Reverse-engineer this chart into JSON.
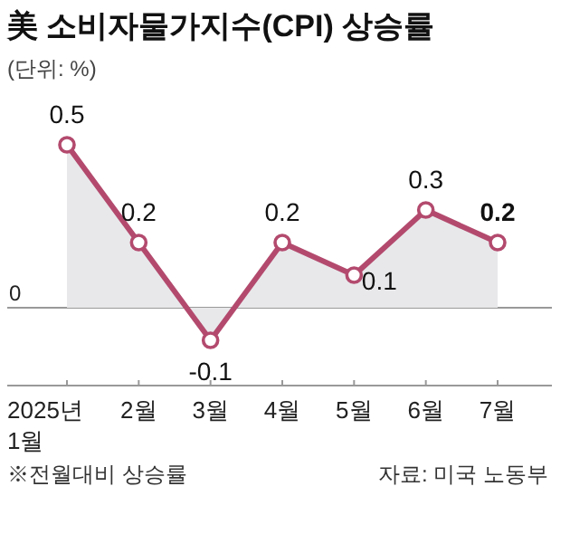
{
  "chart_data": {
    "type": "area",
    "title": "美 소비자물가지수(CPI) 상승률",
    "subtitle": "(단위: %)",
    "categories": [
      "2025년 1월",
      "2월",
      "3월",
      "4월",
      "5월",
      "6월",
      "7월"
    ],
    "series": [
      {
        "color": "#b34a6e",
        "values": [
          0.5,
          0.2,
          -0.1,
          0.2,
          0.1,
          0.3,
          0.2
        ]
      }
    ],
    "ref_lines": [
      {
        "axis": "y",
        "value": 0,
        "label": "0"
      }
    ],
    "data_labels": true,
    "marker": "circle",
    "annotations": [
      "※전월대비 상승률",
      "자료: 미국 노동부"
    ]
  }
}
